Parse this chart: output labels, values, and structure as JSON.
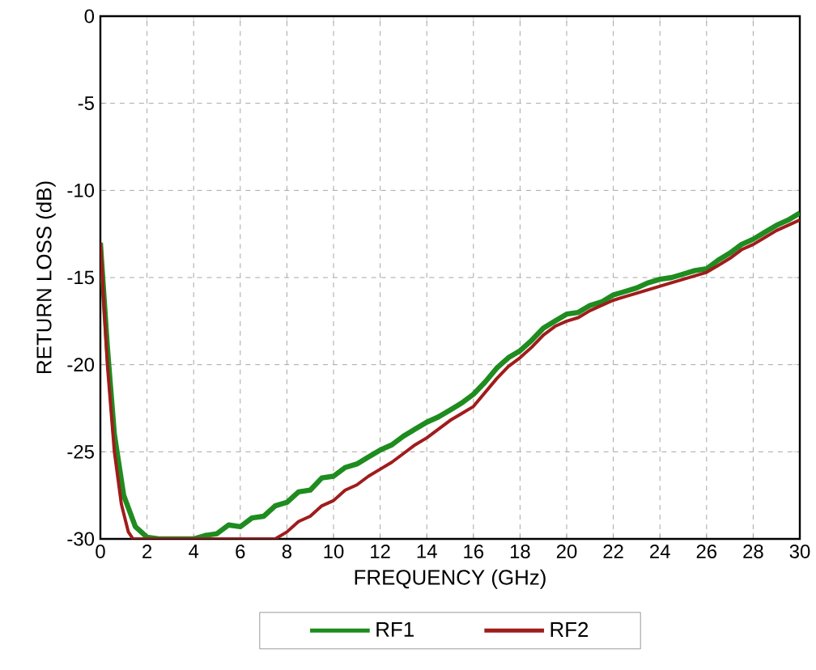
{
  "chart_data": {
    "type": "line",
    "xlabel": "FREQUENCY (GHz)",
    "ylabel": "RETURN LOSS (dB)",
    "xlim": [
      0,
      30
    ],
    "ylim": [
      -30,
      0
    ],
    "xticks": [
      0,
      2,
      4,
      6,
      8,
      10,
      12,
      14,
      16,
      18,
      20,
      22,
      24,
      26,
      28,
      30
    ],
    "yticks": [
      -30,
      -25,
      -20,
      -15,
      -10,
      -5,
      0
    ],
    "grid": true,
    "legend": "bottom",
    "marker": "none",
    "line_style": "solid",
    "series": [
      {
        "name": "RF1",
        "color": "#1e8c1e",
        "x": [
          0,
          0.3,
          0.6,
          1.0,
          1.5,
          2,
          2.5,
          3,
          4,
          4.5,
          5,
          5.5,
          6,
          6.5,
          7,
          7.5,
          8,
          8.5,
          9,
          9.5,
          10,
          10.5,
          11,
          11.5,
          12,
          12.5,
          13,
          13.5,
          14,
          14.5,
          15,
          15.5,
          16,
          16.5,
          17,
          17.5,
          18,
          18.5,
          19,
          19.5,
          20,
          20.5,
          21,
          21.5,
          22,
          22.5,
          23,
          23.5,
          24,
          24.5,
          25,
          25.5,
          26,
          26.5,
          27,
          27.5,
          28,
          28.5,
          29,
          29.5,
          30
        ],
        "values": [
          -13,
          -19,
          -24,
          -27.5,
          -29.3,
          -29.9,
          -30,
          -30,
          -30,
          -29.8,
          -29.7,
          -29.2,
          -29.3,
          -28.8,
          -28.7,
          -28.1,
          -27.9,
          -27.3,
          -27.2,
          -26.5,
          -26.4,
          -25.9,
          -25.7,
          -25.3,
          -24.9,
          -24.6,
          -24.1,
          -23.7,
          -23.3,
          -23.0,
          -22.6,
          -22.2,
          -21.7,
          -21.0,
          -20.2,
          -19.6,
          -19.2,
          -18.6,
          -17.9,
          -17.5,
          -17.1,
          -17.0,
          -16.6,
          -16.4,
          -16.0,
          -15.8,
          -15.6,
          -15.3,
          -15.1,
          -15.0,
          -14.8,
          -14.6,
          -14.5,
          -14.0,
          -13.6,
          -13.1,
          -12.8,
          -12.4,
          -12.0,
          -11.7,
          -11.3
        ]
      },
      {
        "name": "RF2",
        "color": "#a01c1c",
        "x": [
          0,
          0.3,
          0.6,
          0.9,
          1.2,
          1.4,
          2,
          4,
          6,
          7.5,
          8,
          8.5,
          9,
          9.5,
          10,
          10.5,
          11,
          11.5,
          12,
          12.5,
          13,
          13.5,
          14,
          14.5,
          15,
          15.5,
          16,
          16.5,
          17,
          17.5,
          18,
          18.5,
          19,
          19.5,
          20,
          20.5,
          21,
          21.5,
          22,
          22.5,
          23,
          23.5,
          24,
          24.5,
          25,
          25.5,
          26,
          26.5,
          27,
          27.5,
          28,
          28.5,
          29,
          29.5,
          30
        ],
        "values": [
          -13,
          -20,
          -25,
          -28,
          -29.6,
          -30,
          -30,
          -30,
          -30,
          -30,
          -29.6,
          -29.0,
          -28.7,
          -28.1,
          -27.8,
          -27.2,
          -26.9,
          -26.4,
          -26.0,
          -25.6,
          -25.1,
          -24.6,
          -24.2,
          -23.7,
          -23.2,
          -22.8,
          -22.4,
          -21.6,
          -20.8,
          -20.1,
          -19.6,
          -19.0,
          -18.3,
          -17.8,
          -17.5,
          -17.3,
          -16.9,
          -16.6,
          -16.3,
          -16.1,
          -15.9,
          -15.7,
          -15.5,
          -15.3,
          -15.1,
          -14.9,
          -14.7,
          -14.3,
          -13.9,
          -13.4,
          -13.1,
          -12.7,
          -12.3,
          -12.0,
          -11.7
        ]
      }
    ]
  }
}
